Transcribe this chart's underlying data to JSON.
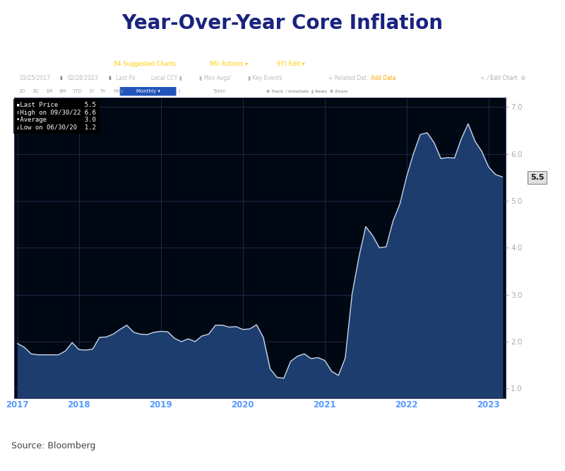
{
  "title": "Year-Over-Year Core Inflation",
  "title_color": "#1a237e",
  "title_fontsize": 20,
  "source_text": "Source: Bloomberg",
  "chart_bg": "#000814",
  "outer_bg": "#ffffff",
  "line_color": "#c8d4e8",
  "fill_color": "#1c3d6e",
  "ylim": [
    0.8,
    7.2
  ],
  "yticks": [
    1.0,
    2.0,
    3.0,
    4.0,
    5.0,
    6.0,
    7.0
  ],
  "last_price_label": "5.5",
  "last_price_y": 5.5,
  "toolbar1_color": "#7a0000",
  "toolbar2_color": "#0a0a0a",
  "toolbar3_color": "#141414",
  "values": [
    1.96,
    1.88,
    1.74,
    1.72,
    1.72,
    1.72,
    1.72,
    1.8,
    1.98,
    1.83,
    1.82,
    1.84,
    2.09,
    2.1,
    2.16,
    2.26,
    2.35,
    2.2,
    2.16,
    2.15,
    2.2,
    2.22,
    2.21,
    2.07,
    2.0,
    2.06,
    2.0,
    2.12,
    2.16,
    2.35,
    2.35,
    2.31,
    2.32,
    2.26,
    2.27,
    2.36,
    2.09,
    1.42,
    1.24,
    1.22,
    1.58,
    1.69,
    1.74,
    1.64,
    1.66,
    1.6,
    1.37,
    1.28,
    1.65,
    3.01,
    3.8,
    4.45,
    4.26,
    4.0,
    4.02,
    4.57,
    4.93,
    5.52,
    6.01,
    6.41,
    6.45,
    6.24,
    5.9,
    5.92,
    5.91,
    6.32,
    6.64,
    6.27,
    6.05,
    5.72,
    5.56,
    5.51
  ],
  "x_tick_years": [
    "2017",
    "2018",
    "2019",
    "2020",
    "2021",
    "2022",
    "2023"
  ],
  "x_tick_positions": [
    0,
    9,
    21,
    33,
    45,
    57,
    69
  ],
  "grid_color": "#2a2a4a",
  "tick_color": "#aaaaaa",
  "n_points": 72
}
